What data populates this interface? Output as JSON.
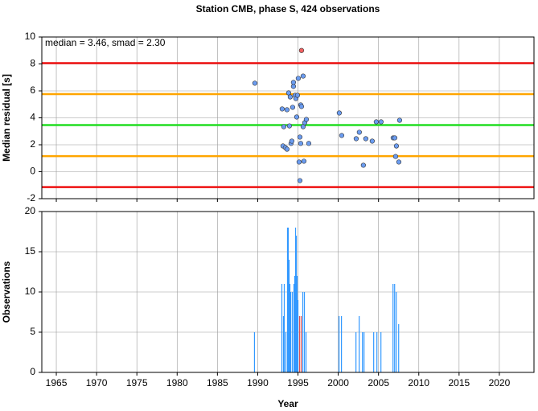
{
  "chart_data": [
    {
      "type": "scatter",
      "title": "Station CMB, phase S, 424 observations",
      "ylabel": "Median residual [s]",
      "annotation": "median = 3.46, smad = 2.30",
      "xlim": [
        1963.2,
        2024.3
      ],
      "xticks": [
        1965,
        1970,
        1975,
        1980,
        1985,
        1990,
        1995,
        2000,
        2005,
        2010,
        2015,
        2020
      ],
      "ylim": [
        -2,
        10
      ],
      "yticks": [
        -2,
        0,
        2,
        4,
        6,
        8,
        10
      ],
      "grid": true,
      "hlines": [
        {
          "value": 8.06,
          "color": "#ee1111"
        },
        {
          "value": 5.76,
          "color": "#ffa500"
        },
        {
          "value": 3.46,
          "color": "#22dd22"
        },
        {
          "value": 1.16,
          "color": "#ffa500"
        },
        {
          "value": -1.14,
          "color": "#ee1111"
        }
      ],
      "series": [
        {
          "color": "#6b9cf0",
          "x": [
            1989.65,
            1993.04,
            1993.24,
            1993.14,
            1993.44,
            1993.64,
            1993.64,
            1993.84,
            1993.94,
            1994.04,
            1994.14,
            1994.24,
            1994.34,
            1994.44,
            1994.44,
            1994.64,
            1994.74,
            1994.84,
            1994.94,
            1995.04,
            1995.14,
            1995.24,
            1995.24,
            1995.34,
            1995.34,
            1995.44,
            1995.64,
            1995.64,
            1995.74,
            1995.84,
            1996.04,
            1996.34,
            2000.13,
            2000.43,
            2002.23,
            2002.62,
            2003.12,
            2003.42,
            2004.22,
            2004.72,
            2005.32,
            2006.82,
            2007.02,
            2007.12,
            2007.22,
            2007.52,
            2007.62
          ],
          "values": [
            6.57,
            4.66,
            3.34,
            1.91,
            1.79,
            1.67,
            4.6,
            5.85,
            3.4,
            5.55,
            2.1,
            2.27,
            4.78,
            6.33,
            6.63,
            5.67,
            5.43,
            4.06,
            5.67,
            6.93,
            0.72,
            -0.66,
            2.57,
            2.1,
            4.96,
            4.84,
            7.1,
            3.34,
            0.78,
            3.64,
            3.88,
            2.1,
            4.36,
            2.69,
            2.45,
            2.93,
            0.48,
            2.45,
            2.27,
            3.7,
            3.7,
            2.51,
            2.51,
            1.13,
            1.91,
            0.72,
            3.82
          ]
        },
        {
          "color": "#f06060",
          "x": [
            1995.44
          ],
          "values": [
            9.0
          ]
        }
      ]
    },
    {
      "type": "bar",
      "xlabel": "Year",
      "ylabel": "Observations",
      "xlim": [
        1963.2,
        2024.3
      ],
      "xticks": [
        1965,
        1970,
        1975,
        1980,
        1985,
        1990,
        1995,
        2000,
        2005,
        2010,
        2015,
        2020
      ],
      "ylim": [
        0,
        20
      ],
      "yticks": [
        0,
        5,
        10,
        15,
        20
      ],
      "grid": true,
      "color": "#3399ff",
      "x": [
        1989.6,
        1993.0,
        1993.2,
        1993.3,
        1993.5,
        1993.7,
        1993.8,
        1993.9,
        1994.0,
        1994.1,
        1994.3,
        1994.5,
        1994.6,
        1994.7,
        1994.8,
        1994.9,
        1995.0,
        1995.2,
        1995.4,
        1995.6,
        1995.8,
        1996.0,
        2000.1,
        2000.4,
        2002.2,
        2002.6,
        2003.0,
        2003.2,
        2004.4,
        2004.8,
        2005.3,
        2006.8,
        2007.0,
        2007.2,
        2007.5
      ],
      "values": [
        5,
        11,
        7,
        11,
        5,
        18,
        18,
        14,
        11,
        10,
        10,
        11,
        12,
        18,
        17,
        12,
        9,
        7,
        7,
        10,
        10,
        5,
        7,
        7,
        5,
        7,
        5,
        5,
        5,
        5,
        5,
        11,
        11,
        10,
        6
      ],
      "highlight": {
        "indices": [
          17,
          18
        ],
        "color": "#e05050"
      }
    }
  ]
}
